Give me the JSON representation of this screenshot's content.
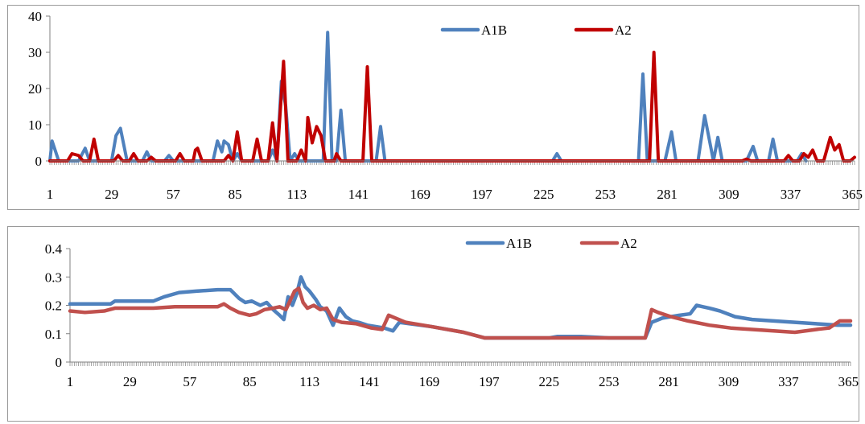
{
  "charts": [
    {
      "type": "line",
      "title": "",
      "xlabel": "",
      "ylabel": "",
      "ylim": [
        0,
        40
      ],
      "yticks": [
        "0",
        "10",
        "20",
        "30",
        "40"
      ],
      "xlim": [
        1,
        366
      ],
      "xticks": [
        "1",
        "29",
        "57",
        "85",
        "113",
        "141",
        "169",
        "197",
        "225",
        "253",
        "281",
        "309",
        "337",
        "365"
      ],
      "legend": "top-center",
      "grid": false,
      "series": [
        {
          "name": "A1B",
          "color": "#4f81bd",
          "points": [
            [
              1,
              0
            ],
            [
              2,
              5.5
            ],
            [
              5,
              0
            ],
            [
              14,
              0
            ],
            [
              17,
              3.5
            ],
            [
              19,
              0
            ],
            [
              29,
              0
            ],
            [
              31,
              7
            ],
            [
              33,
              9
            ],
            [
              36,
              0
            ],
            [
              43,
              0
            ],
            [
              45,
              2.5
            ],
            [
              47,
              0
            ],
            [
              53,
              0
            ],
            [
              55,
              1.5
            ],
            [
              57,
              0
            ],
            [
              75,
              0
            ],
            [
              77,
              5.5
            ],
            [
              79,
              2.5
            ],
            [
              80,
              5.5
            ],
            [
              82,
              4.5
            ],
            [
              84,
              0
            ],
            [
              86,
              2
            ],
            [
              88,
              0
            ],
            [
              100,
              0
            ],
            [
              102,
              3
            ],
            [
              104,
              0
            ],
            [
              106,
              22
            ],
            [
              108,
              15
            ],
            [
              110,
              0
            ],
            [
              112,
              2
            ],
            [
              114,
              0
            ],
            [
              125,
              0
            ],
            [
              127,
              35.5
            ],
            [
              129,
              0
            ],
            [
              131,
              0
            ],
            [
              133,
              14
            ],
            [
              135,
              0
            ],
            [
              149,
              0
            ],
            [
              151,
              9.5
            ],
            [
              153,
              0
            ],
            [
              229,
              0
            ],
            [
              231,
              2
            ],
            [
              233,
              0
            ],
            [
              268,
              0
            ],
            [
              270,
              24
            ],
            [
              272,
              0
            ],
            [
              280,
              0
            ],
            [
              283,
              8
            ],
            [
              285,
              0
            ],
            [
              295,
              0
            ],
            [
              298,
              12.5
            ],
            [
              302,
              0
            ],
            [
              304,
              6.5
            ],
            [
              306,
              0
            ],
            [
              317,
              0
            ],
            [
              320,
              4
            ],
            [
              322,
              0
            ],
            [
              327,
              0
            ],
            [
              329,
              6
            ],
            [
              331,
              0
            ],
            [
              340,
              0
            ],
            [
              342,
              2
            ],
            [
              344,
              0
            ]
          ]
        },
        {
          "name": "A2",
          "color": "#c00000",
          "points": [
            [
              1,
              0
            ],
            [
              9,
              0
            ],
            [
              11,
              2
            ],
            [
              14,
              1.5
            ],
            [
              16,
              0
            ],
            [
              19,
              0
            ],
            [
              21,
              6
            ],
            [
              23,
              0
            ],
            [
              30,
              0
            ],
            [
              32,
              1.5
            ],
            [
              34,
              0
            ],
            [
              37,
              0
            ],
            [
              39,
              2
            ],
            [
              41,
              0
            ],
            [
              45,
              0
            ],
            [
              47,
              1
            ],
            [
              49,
              0
            ],
            [
              58,
              0
            ],
            [
              60,
              2
            ],
            [
              62,
              0
            ],
            [
              66,
              0
            ],
            [
              67,
              3
            ],
            [
              68,
              3.5
            ],
            [
              70,
              0
            ],
            [
              80,
              0
            ],
            [
              82,
              1.5
            ],
            [
              84,
              0
            ],
            [
              86,
              8
            ],
            [
              88,
              0
            ],
            [
              93,
              0
            ],
            [
              95,
              6
            ],
            [
              97,
              0
            ],
            [
              100,
              0
            ],
            [
              102,
              10.5
            ],
            [
              104,
              0
            ],
            [
              107,
              27.5
            ],
            [
              109,
              0
            ],
            [
              113,
              0
            ],
            [
              115,
              3
            ],
            [
              117,
              0
            ],
            [
              118,
              12
            ],
            [
              120,
              5
            ],
            [
              122,
              9.5
            ],
            [
              124,
              7
            ],
            [
              126,
              0
            ],
            [
              130,
              0
            ],
            [
              131,
              2
            ],
            [
              133,
              0
            ],
            [
              143,
              0
            ],
            [
              145,
              26
            ],
            [
              147,
              0
            ],
            [
              273,
              0
            ],
            [
              275,
              30
            ],
            [
              277,
              0
            ],
            [
              315,
              0
            ],
            [
              317,
              0.5
            ],
            [
              319,
              0
            ],
            [
              334,
              0
            ],
            [
              336,
              1.5
            ],
            [
              338,
              0
            ],
            [
              341,
              0
            ],
            [
              343,
              2
            ],
            [
              345,
              1
            ],
            [
              347,
              3
            ],
            [
              349,
              0
            ],
            [
              352,
              0
            ],
            [
              355,
              6.5
            ],
            [
              357,
              3
            ],
            [
              359,
              4.5
            ],
            [
              361,
              0
            ],
            [
              364,
              0
            ],
            [
              366,
              1
            ]
          ]
        }
      ]
    },
    {
      "type": "line",
      "title": "",
      "xlabel": "",
      "ylabel": "",
      "ylim": [
        0,
        0.4
      ],
      "yticks": [
        "0",
        "0.1",
        "0.2",
        "0.3",
        "0.4"
      ],
      "xlim": [
        1,
        366
      ],
      "xticks": [
        "1",
        "29",
        "57",
        "85",
        "113",
        "141",
        "169",
        "197",
        "225",
        "253",
        "281",
        "309",
        "337",
        "365"
      ],
      "legend": "top-center",
      "grid": false,
      "series": [
        {
          "name": "A1B",
          "color": "#4f81bd",
          "points": [
            [
              1,
              0.205
            ],
            [
              20,
              0.205
            ],
            [
              22,
              0.215
            ],
            [
              40,
              0.215
            ],
            [
              45,
              0.23
            ],
            [
              52,
              0.245
            ],
            [
              60,
              0.25
            ],
            [
              70,
              0.255
            ],
            [
              76,
              0.255
            ],
            [
              80,
              0.225
            ],
            [
              83,
              0.21
            ],
            [
              86,
              0.215
            ],
            [
              90,
              0.2
            ],
            [
              93,
              0.21
            ],
            [
              96,
              0.185
            ],
            [
              99,
              0.165
            ],
            [
              101,
              0.15
            ],
            [
              103,
              0.23
            ],
            [
              105,
              0.2
            ],
            [
              107,
              0.24
            ],
            [
              109,
              0.3
            ],
            [
              111,
              0.265
            ],
            [
              113,
              0.25
            ],
            [
              116,
              0.22
            ],
            [
              118,
              0.195
            ],
            [
              121,
              0.18
            ],
            [
              124,
              0.13
            ],
            [
              127,
              0.19
            ],
            [
              130,
              0.16
            ],
            [
              133,
              0.145
            ],
            [
              136,
              0.14
            ],
            [
              140,
              0.13
            ],
            [
              144,
              0.125
            ],
            [
              148,
              0.12
            ],
            [
              152,
              0.11
            ],
            [
              155,
              0.14
            ],
            [
              170,
              0.125
            ],
            [
              185,
              0.105
            ],
            [
              195,
              0.085
            ],
            [
              225,
              0.085
            ],
            [
              229,
              0.09
            ],
            [
              240,
              0.09
            ],
            [
              253,
              0.085
            ],
            [
              270,
              0.085
            ],
            [
              273,
              0.14
            ],
            [
              278,
              0.155
            ],
            [
              282,
              0.16
            ],
            [
              286,
              0.165
            ],
            [
              291,
              0.17
            ],
            [
              294,
              0.2
            ],
            [
              297,
              0.195
            ],
            [
              300,
              0.19
            ],
            [
              305,
              0.18
            ],
            [
              312,
              0.16
            ],
            [
              320,
              0.15
            ],
            [
              330,
              0.145
            ],
            [
              340,
              0.14
            ],
            [
              350,
              0.135
            ],
            [
              360,
              0.13
            ],
            [
              366,
              0.13
            ]
          ]
        },
        {
          "name": "A2",
          "color": "#c0504d",
          "points": [
            [
              1,
              0.18
            ],
            [
              8,
              0.175
            ],
            [
              17,
              0.18
            ],
            [
              22,
              0.19
            ],
            [
              29,
              0.19
            ],
            [
              40,
              0.19
            ],
            [
              50,
              0.195
            ],
            [
              60,
              0.195
            ],
            [
              70,
              0.195
            ],
            [
              73,
              0.205
            ],
            [
              76,
              0.19
            ],
            [
              80,
              0.175
            ],
            [
              85,
              0.165
            ],
            [
              88,
              0.17
            ],
            [
              92,
              0.185
            ],
            [
              96,
              0.19
            ],
            [
              99,
              0.195
            ],
            [
              102,
              0.185
            ],
            [
              106,
              0.25
            ],
            [
              108,
              0.26
            ],
            [
              110,
              0.21
            ],
            [
              112,
              0.19
            ],
            [
              115,
              0.2
            ],
            [
              118,
              0.185
            ],
            [
              121,
              0.19
            ],
            [
              124,
              0.15
            ],
            [
              128,
              0.14
            ],
            [
              135,
              0.135
            ],
            [
              142,
              0.12
            ],
            [
              147,
              0.115
            ],
            [
              150,
              0.165
            ],
            [
              158,
              0.14
            ],
            [
              170,
              0.125
            ],
            [
              185,
              0.105
            ],
            [
              195,
              0.085
            ],
            [
              225,
              0.085
            ],
            [
              240,
              0.085
            ],
            [
              253,
              0.085
            ],
            [
              270,
              0.085
            ],
            [
              273,
              0.185
            ],
            [
              276,
              0.175
            ],
            [
              282,
              0.16
            ],
            [
              290,
              0.145
            ],
            [
              300,
              0.13
            ],
            [
              310,
              0.12
            ],
            [
              320,
              0.115
            ],
            [
              330,
              0.11
            ],
            [
              340,
              0.105
            ],
            [
              350,
              0.115
            ],
            [
              356,
              0.12
            ],
            [
              361,
              0.145
            ],
            [
              366,
              0.145
            ]
          ]
        }
      ]
    }
  ]
}
